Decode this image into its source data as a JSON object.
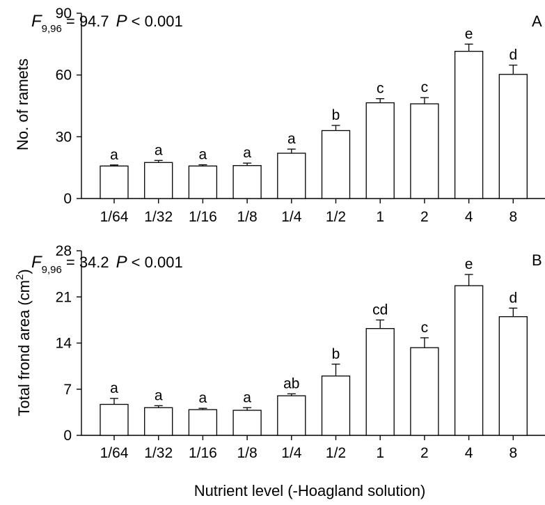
{
  "chart_data": [
    {
      "type": "bar",
      "panel_label": "A",
      "ylabel": "No. of ramets",
      "ylim": [
        0,
        90
      ],
      "yticks": [
        0,
        30,
        60,
        90
      ],
      "categories": [
        "1/64",
        "1/32",
        "1/16",
        "1/8",
        "1/4",
        "1/2",
        "1",
        "2",
        "4",
        "8"
      ],
      "values": [
        15.8,
        17.5,
        15.8,
        16.0,
        22.0,
        33.0,
        46.5,
        46.0,
        71.5,
        60.3
      ],
      "errors": [
        0.5,
        1.0,
        0.6,
        1.2,
        2.0,
        2.5,
        2.0,
        3.0,
        3.5,
        4.5
      ],
      "significance": [
        "a",
        "a",
        "a",
        "a",
        "a",
        "b",
        "c",
        "c",
        "e",
        "d"
      ],
      "stat": {
        "F": "F",
        "df": "9,96",
        "F_value": "= 94.7",
        "P": "P",
        "P_value": "< 0.001"
      }
    },
    {
      "type": "bar",
      "panel_label": "B",
      "ylabel_text": "Total frond area (cm",
      "ylabel_sup": "2",
      "ylabel_close": ")",
      "ylim": [
        0,
        28
      ],
      "yticks": [
        0,
        7,
        14,
        21,
        28
      ],
      "categories": [
        "1/64",
        "1/32",
        "1/16",
        "1/8",
        "1/4",
        "1/2",
        "1",
        "2",
        "4",
        "8"
      ],
      "values": [
        4.7,
        4.2,
        3.9,
        3.8,
        6.0,
        9.0,
        16.2,
        13.3,
        22.7,
        18.0
      ],
      "errors": [
        0.9,
        0.3,
        0.2,
        0.4,
        0.3,
        1.8,
        1.3,
        1.5,
        1.7,
        1.3
      ],
      "significance": [
        "a",
        "a",
        "a",
        "a",
        "ab",
        "b",
        "cd",
        "c",
        "e",
        "d"
      ],
      "stat": {
        "F": "F",
        "df": "9,96",
        "F_value": "= 34.2",
        "P": "P",
        "P_value": "< 0.001"
      }
    }
  ],
  "xlabel": "Nutrient level (-Hoagland solution)"
}
